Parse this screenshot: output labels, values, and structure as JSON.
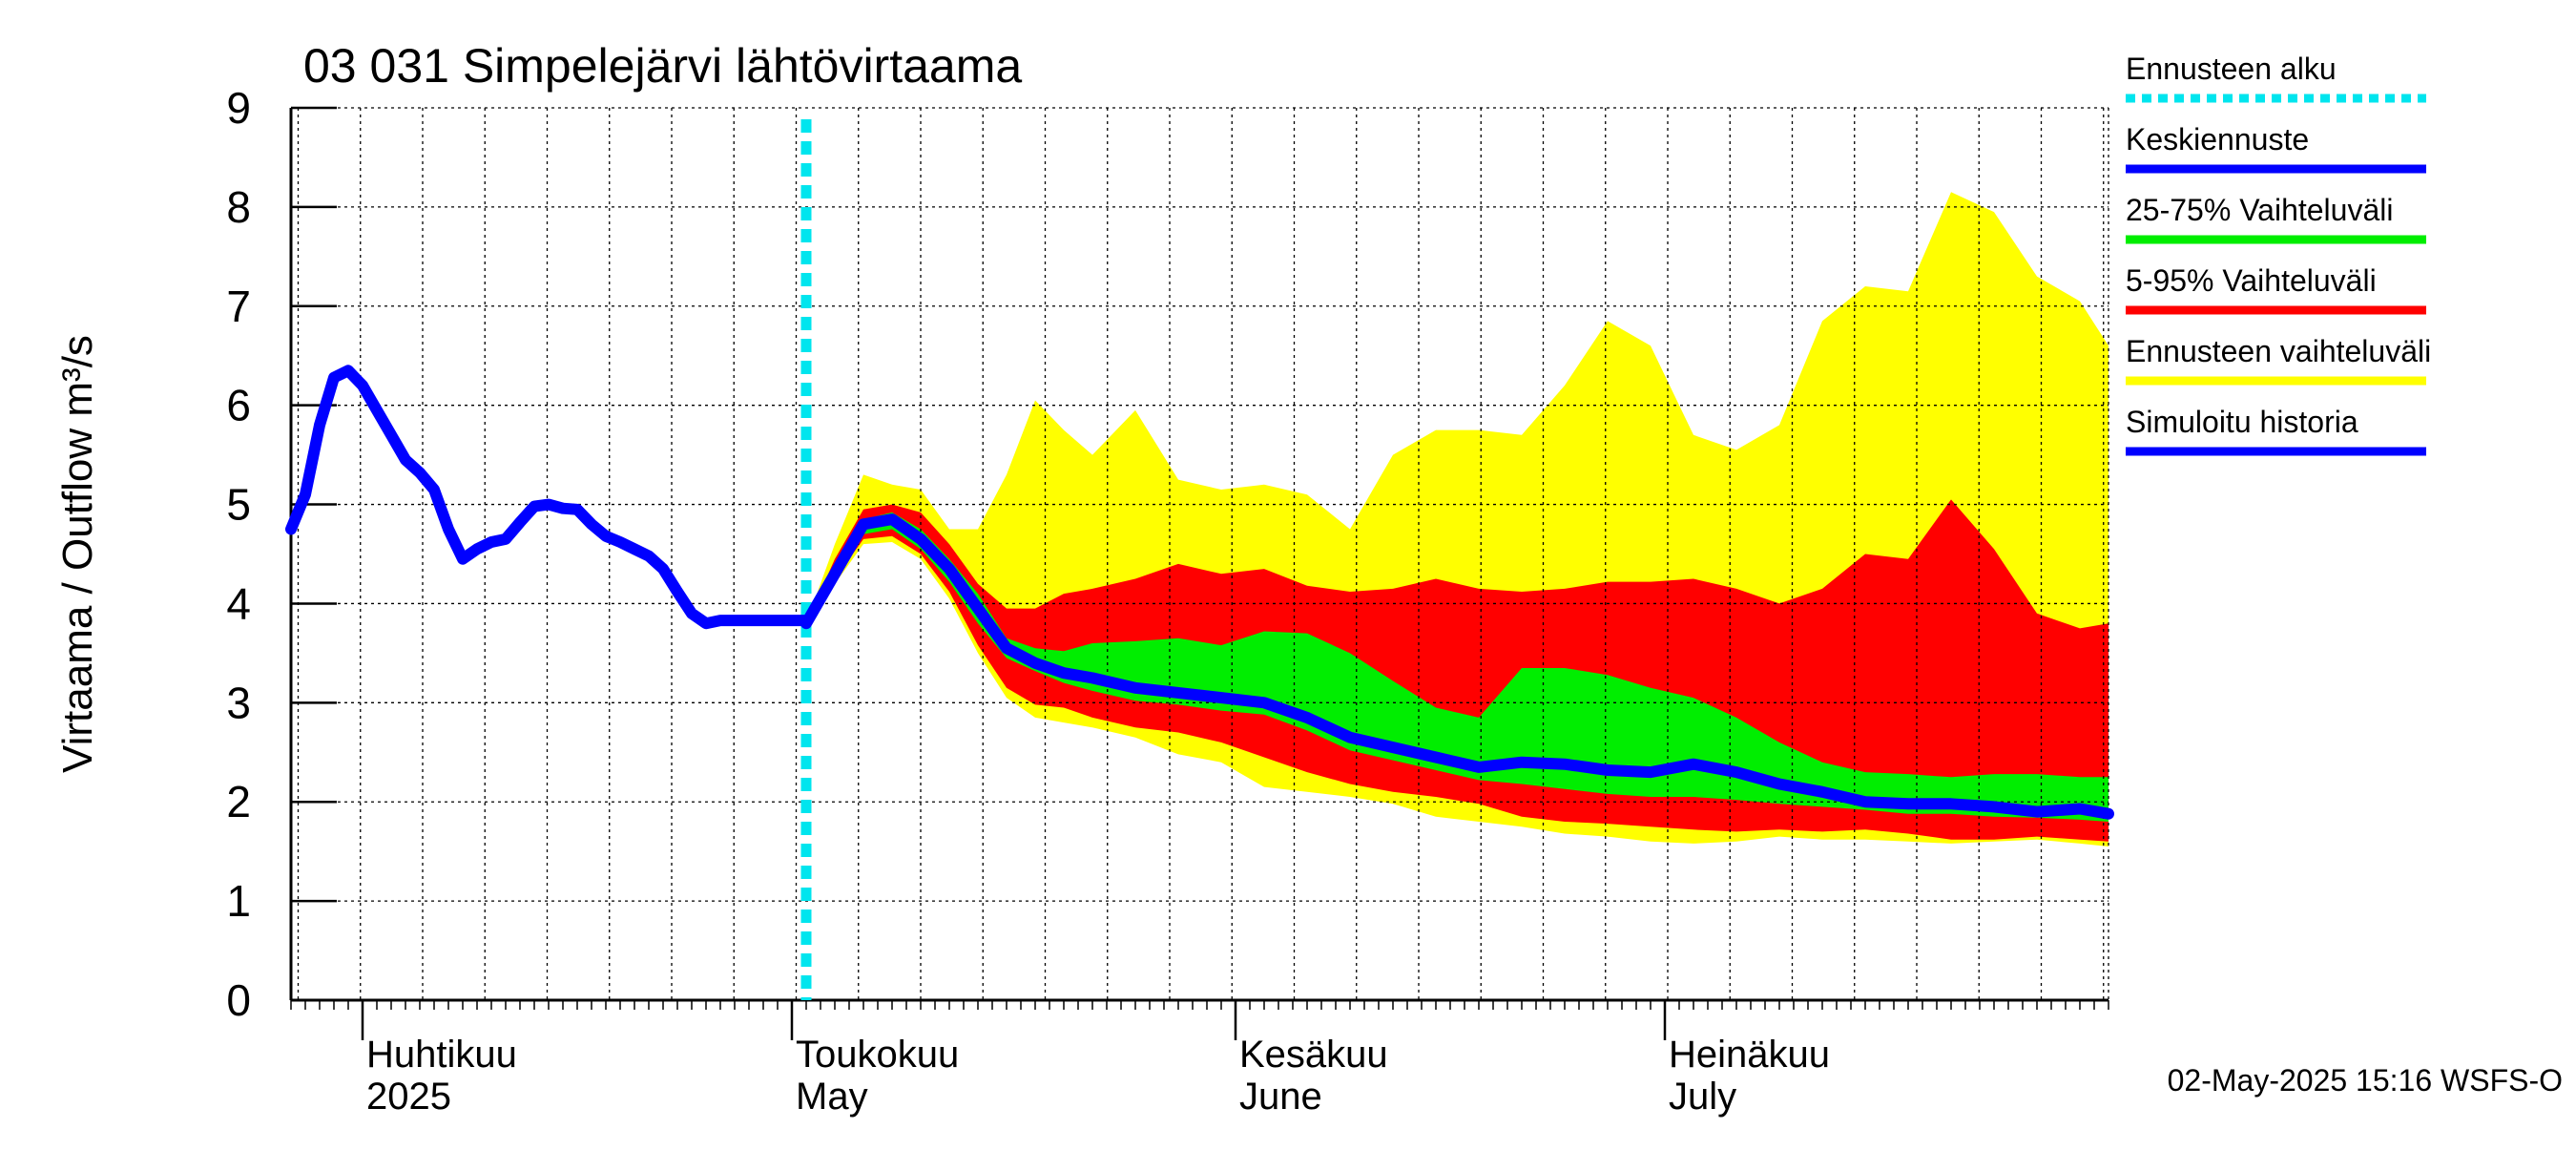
{
  "chart_data": {
    "type": "area",
    "title": "03 031 Simpelejärvi lähtövirtaama",
    "ylabel": "Virtaama / Outflow    m³/s",
    "ylim": [
      0,
      9
    ],
    "yticks": [
      0,
      1,
      2,
      3,
      4,
      5,
      6,
      7,
      8,
      9
    ],
    "x_start": "2025-03-27",
    "x_end": "2025-08-01",
    "forecast_start": "2025-05-02",
    "grid": true,
    "legend_placement": "right",
    "month_labels": [
      {
        "date": "2025-04-01",
        "line1": "Huhtikuu",
        "line2": "2025"
      },
      {
        "date": "2025-05-01",
        "line1": "Toukokuu",
        "line2": "May"
      },
      {
        "date": "2025-06-01",
        "line1": "Kesäkuu",
        "line2": "June"
      },
      {
        "date": "2025-07-01",
        "line1": "Heinäkuu",
        "line2": "July"
      }
    ],
    "legend": [
      {
        "label": "Ennusteen alku",
        "color": "#00e5ee",
        "style": "dotted"
      },
      {
        "label": "Keskiennuste",
        "color": "#0000ff",
        "style": "solid"
      },
      {
        "label": "25-75% Vaihteluväli",
        "color": "#00ee00",
        "style": "solid"
      },
      {
        "label": "5-95% Vaihteluväli",
        "color": "#ff0000",
        "style": "solid"
      },
      {
        "label": "Ennusteen vaihteluväli",
        "color": "#ffff00",
        "style": "solid"
      },
      {
        "label": "Simuloitu historia",
        "color": "#0000ff",
        "style": "solid"
      }
    ],
    "history": {
      "name": "Simuloitu historia",
      "color": "#0000ff",
      "x": [
        "2025-03-27",
        "2025-03-28",
        "2025-03-29",
        "2025-03-30",
        "2025-03-31",
        "2025-04-01",
        "2025-04-02",
        "2025-04-03",
        "2025-04-04",
        "2025-04-05",
        "2025-04-06",
        "2025-04-07",
        "2025-04-08",
        "2025-04-09",
        "2025-04-10",
        "2025-04-11",
        "2025-04-12",
        "2025-04-13",
        "2025-04-14",
        "2025-04-15",
        "2025-04-16",
        "2025-04-17",
        "2025-04-18",
        "2025-04-19",
        "2025-04-20",
        "2025-04-21",
        "2025-04-22",
        "2025-04-23",
        "2025-04-24",
        "2025-04-25",
        "2025-04-26",
        "2025-04-27",
        "2025-04-28",
        "2025-04-29",
        "2025-04-30",
        "2025-05-01",
        "2025-05-02"
      ],
      "y": [
        4.75,
        5.1,
        5.8,
        6.28,
        6.35,
        6.2,
        5.95,
        5.7,
        5.45,
        5.32,
        5.15,
        4.75,
        4.45,
        4.55,
        4.62,
        4.65,
        4.82,
        4.98,
        5.0,
        4.96,
        4.95,
        4.8,
        4.68,
        4.62,
        4.55,
        4.48,
        4.35,
        4.12,
        3.9,
        3.8,
        3.83,
        3.83,
        3.83,
        3.83,
        3.83,
        3.83,
        3.83
      ]
    },
    "forecast": {
      "x": [
        "2025-05-02",
        "2025-05-04",
        "2025-05-06",
        "2025-05-08",
        "2025-05-10",
        "2025-05-12",
        "2025-05-14",
        "2025-05-16",
        "2025-05-18",
        "2025-05-20",
        "2025-05-22",
        "2025-05-25",
        "2025-05-28",
        "2025-05-31",
        "2025-06-03",
        "2025-06-06",
        "2025-06-09",
        "2025-06-12",
        "2025-06-15",
        "2025-06-18",
        "2025-06-21",
        "2025-06-24",
        "2025-06-27",
        "2025-06-30",
        "2025-07-03",
        "2025-07-06",
        "2025-07-09",
        "2025-07-12",
        "2025-07-15",
        "2025-07-18",
        "2025-07-21",
        "2025-07-24",
        "2025-07-27",
        "2025-07-30",
        "2025-08-01"
      ],
      "median": [
        3.8,
        4.3,
        4.8,
        4.85,
        4.65,
        4.35,
        3.95,
        3.55,
        3.4,
        3.3,
        3.25,
        3.15,
        3.1,
        3.05,
        3.0,
        2.85,
        2.65,
        2.55,
        2.45,
        2.35,
        2.4,
        2.38,
        2.32,
        2.3,
        2.38,
        2.3,
        2.18,
        2.1,
        2.0,
        1.98,
        1.98,
        1.95,
        1.9,
        1.93,
        1.88
      ],
      "p25": [
        3.8,
        4.28,
        4.7,
        4.75,
        4.55,
        4.22,
        3.8,
        3.45,
        3.32,
        3.2,
        3.12,
        3.02,
        2.98,
        2.92,
        2.88,
        2.72,
        2.52,
        2.42,
        2.32,
        2.22,
        2.18,
        2.13,
        2.08,
        2.05,
        2.05,
        2.02,
        1.98,
        1.95,
        1.92,
        1.88,
        1.88,
        1.85,
        1.84,
        1.82,
        1.8
      ],
      "p75": [
        3.8,
        4.38,
        4.85,
        4.92,
        4.75,
        4.45,
        4.1,
        3.65,
        3.55,
        3.52,
        3.6,
        3.62,
        3.65,
        3.58,
        3.72,
        3.7,
        3.5,
        3.22,
        2.95,
        2.85,
        3.35,
        3.35,
        3.28,
        3.15,
        3.05,
        2.85,
        2.6,
        2.4,
        2.3,
        2.28,
        2.25,
        2.28,
        2.28,
        2.25,
        2.25
      ],
      "p5": [
        3.8,
        4.25,
        4.65,
        4.68,
        4.5,
        4.12,
        3.58,
        3.15,
        2.98,
        2.95,
        2.85,
        2.75,
        2.7,
        2.6,
        2.45,
        2.3,
        2.18,
        2.1,
        2.05,
        1.98,
        1.85,
        1.8,
        1.78,
        1.75,
        1.72,
        1.7,
        1.72,
        1.7,
        1.72,
        1.68,
        1.62,
        1.62,
        1.65,
        1.62,
        1.6
      ],
      "p95": [
        3.8,
        4.45,
        4.95,
        5.0,
        4.92,
        4.6,
        4.2,
        3.95,
        3.95,
        4.1,
        4.15,
        4.25,
        4.4,
        4.3,
        4.35,
        4.18,
        4.12,
        4.15,
        4.25,
        4.15,
        4.12,
        4.15,
        4.22,
        4.22,
        4.25,
        4.15,
        4.0,
        4.15,
        4.5,
        4.45,
        5.05,
        4.55,
        3.9,
        3.75,
        3.8
      ],
      "min": [
        3.8,
        4.2,
        4.6,
        4.62,
        4.45,
        4.05,
        3.5,
        3.05,
        2.85,
        2.8,
        2.75,
        2.65,
        2.48,
        2.4,
        2.15,
        2.1,
        2.05,
        1.98,
        1.85,
        1.8,
        1.75,
        1.68,
        1.65,
        1.6,
        1.58,
        1.6,
        1.65,
        1.62,
        1.62,
        1.6,
        1.58,
        1.6,
        1.62,
        1.58,
        1.55
      ],
      "max": [
        3.8,
        4.6,
        5.3,
        5.2,
        5.15,
        4.75,
        4.75,
        5.3,
        6.05,
        5.75,
        5.5,
        5.95,
        5.25,
        5.15,
        5.2,
        5.1,
        4.75,
        5.5,
        5.75,
        5.75,
        5.7,
        6.2,
        6.85,
        6.6,
        5.7,
        5.55,
        5.8,
        6.85,
        7.2,
        7.15,
        8.15,
        7.95,
        7.3,
        7.05,
        6.6
      ]
    },
    "timestamp": "02-May-2025 15:16 WSFS-O"
  }
}
